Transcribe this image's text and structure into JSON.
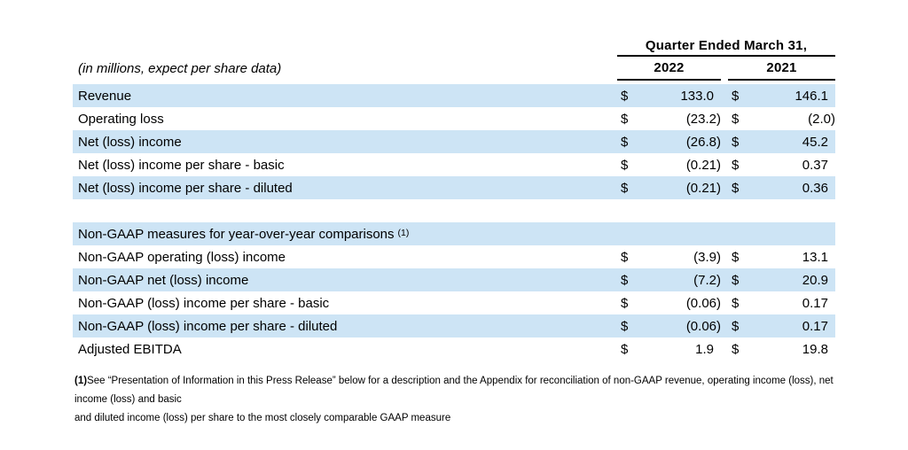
{
  "colors": {
    "band": "#cde4f5",
    "rule": "#000000",
    "text": "#000000"
  },
  "header": {
    "quarter_label": "Quarter Ended March 31,",
    "units_note": "(in millions, expect per share data)",
    "year_2022": "2022",
    "year_2021": "2021"
  },
  "table": {
    "currency_symbol": "$",
    "gaap_rows": [
      {
        "label": "Revenue",
        "v2022": "133.0",
        "v2021": "146.1"
      },
      {
        "label": "Operating loss",
        "v2022": "(23.2)",
        "v2021": "(2.0)"
      },
      {
        "label": "Net (loss) income",
        "v2022": "(26.8)",
        "v2021": "45.2"
      },
      {
        "label": "Net (loss) income per share - basic",
        "v2022": "(0.21)",
        "v2021": "0.37"
      },
      {
        "label": "Net (loss) income per share - diluted",
        "v2022": "(0.21)",
        "v2021": "0.36"
      }
    ],
    "section_header": {
      "label": "Non-GAAP measures for year-over-year comparisons",
      "footnote_ref": "(1)"
    },
    "nongaap_rows": [
      {
        "label": "Non-GAAP operating (loss) income",
        "v2022": "(3.9)",
        "v2021": "13.1"
      },
      {
        "label": "Non-GAAP net (loss) income",
        "v2022": "(7.2)",
        "v2021": "20.9"
      },
      {
        "label": "Non-GAAP (loss) income per share - basic",
        "v2022": "(0.06)",
        "v2021": "0.17"
      },
      {
        "label": "Non-GAAP (loss) income per share - diluted",
        "v2022": "(0.06)",
        "v2021": "0.17"
      },
      {
        "label": "Adjusted EBITDA",
        "v2022": "1.9",
        "v2021": "19.8"
      }
    ]
  },
  "footnote": {
    "marker": "(1)",
    "line1": "See “Presentation of Information in this Press Release” below for a description and the Appendix for reconciliation of non-GAAP revenue, operating income (loss), net income (loss) and basic",
    "line2": "and diluted income (loss) per share to the most closely comparable GAAP measure"
  }
}
